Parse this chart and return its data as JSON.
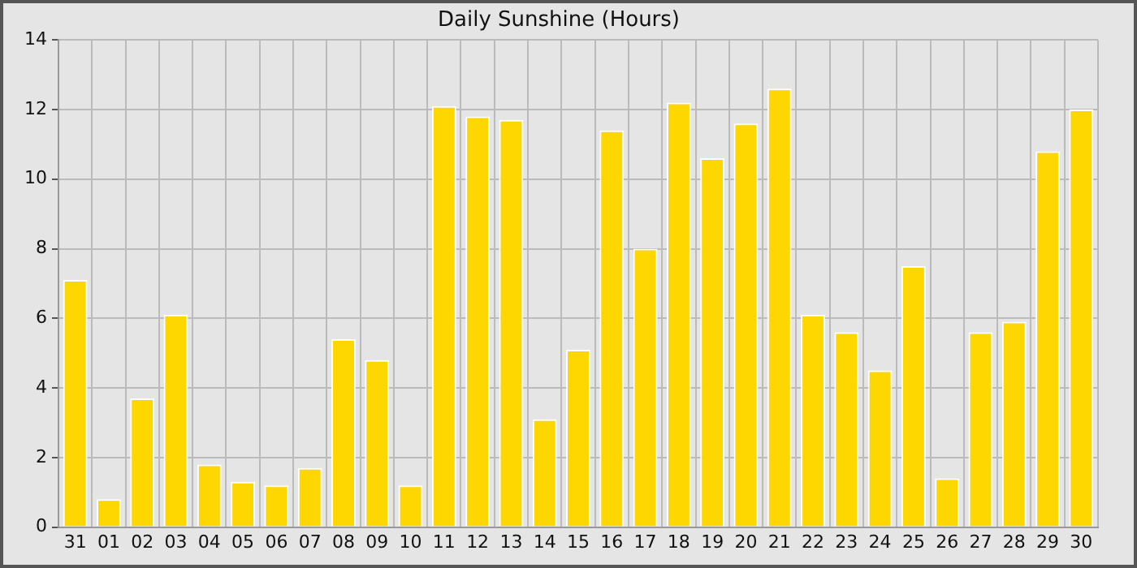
{
  "chart_data": {
    "type": "bar",
    "title": "Daily Sunshine (Hours)",
    "categories": [
      "31",
      "01",
      "02",
      "03",
      "04",
      "05",
      "06",
      "07",
      "08",
      "09",
      "10",
      "11",
      "12",
      "13",
      "14",
      "15",
      "16",
      "17",
      "18",
      "19",
      "20",
      "21",
      "22",
      "23",
      "24",
      "25",
      "26",
      "27",
      "28",
      "29",
      "30"
    ],
    "values": [
      7.1,
      0.8,
      3.7,
      6.1,
      1.8,
      1.3,
      1.2,
      1.7,
      5.4,
      4.8,
      1.2,
      12.1,
      11.8,
      11.7,
      3.1,
      5.1,
      11.4,
      8.0,
      12.2,
      10.6,
      11.6,
      12.6,
      6.1,
      5.6,
      4.5,
      7.5,
      1.4,
      5.6,
      5.9,
      10.8,
      12.0
    ],
    "color": "#ffd700",
    "ylim": [
      0,
      14
    ],
    "yticks": [
      0,
      2,
      4,
      6,
      8,
      10,
      12,
      14
    ],
    "grid": true
  }
}
